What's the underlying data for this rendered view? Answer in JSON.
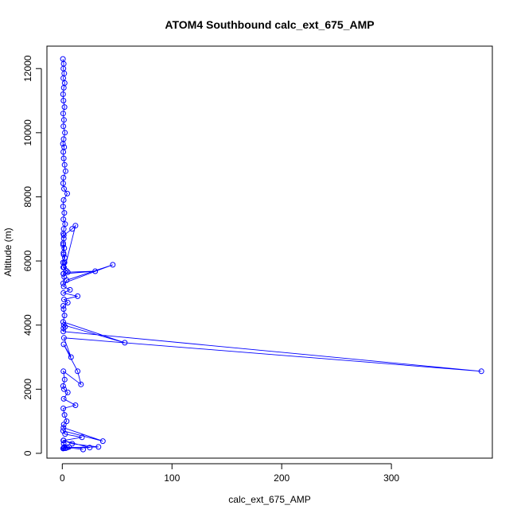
{
  "chart_data": {
    "type": "line",
    "title": "ATOM4 Southbound calc_ext_675_AMP",
    "xlabel": "calc_ext_675_AMP",
    "ylabel": "Altitude (m)",
    "xlim": [
      -14,
      392
    ],
    "ylim": [
      -150,
      12700
    ],
    "xticks": [
      0,
      100,
      200,
      300
    ],
    "yticks": [
      0,
      2000,
      4000,
      6000,
      8000,
      10000,
      12000
    ],
    "color": "#0000ff",
    "series": [
      {
        "x": [
          0.6,
          1.3,
          1.0,
          1.8,
          0.9,
          2.2,
          1.4,
          0.7,
          1.1,
          2.0,
          0.8,
          1.5,
          1.0,
          2.4,
          1.2,
          0.6,
          1.7,
          0.9,
          1.3,
          2.1,
          3.0,
          1.1,
          0.8,
          1.6,
          4.5,
          1.2,
          0.7,
          1.9,
          1.0,
          2.6,
          1.3,
          0.9,
          1.4,
          0.8,
          1.8,
          1.1,
          2.3,
          0.7,
          1.5,
          3.5,
          1.0,
          12.0,
          9.0,
          1.4,
          0.8,
          1.2,
          2.0,
          0.9,
          5.0,
          30.0,
          1.1,
          1.8,
          0.8,
          46.0,
          4.0,
          1.3,
          7.0,
          1.0,
          14.0,
          1.6,
          5.0,
          0.9,
          1.2,
          2.0,
          0.8,
          57.0,
          1.4,
          2.6,
          1.1,
          0.9,
          382.0,
          1.5,
          8.0,
          1.2,
          14.0,
          17.0,
          1.0,
          2.2,
          0.8,
          1.6,
          5.0,
          1.3,
          12.0,
          0.9,
          2.0,
          4.0,
          1.4,
          1.1,
          37.0,
          0.8,
          2.5,
          18.0,
          1.2,
          9.0,
          33.0,
          1.6,
          0.9,
          25.0,
          3.0,
          1.3,
          2.0,
          19.0,
          4.5,
          1.1,
          6.0,
          0.8
        ],
        "y": [
          12300,
          12150,
          12000,
          11850,
          11700,
          11550,
          11400,
          11200,
          11000,
          10800,
          10600,
          10400,
          10200,
          10000,
          9800,
          9650,
          9550,
          9400,
          9200,
          9000,
          8800,
          8600,
          8420,
          8250,
          8100,
          7900,
          7700,
          7500,
          7300,
          7150,
          7000,
          6850,
          6700,
          6550,
          6400,
          6250,
          6100,
          5950,
          5800,
          5700,
          5600,
          7100,
          7000,
          6800,
          6500,
          6200,
          5950,
          5800,
          5650,
          5680,
          5600,
          5500,
          5300,
          5880,
          5400,
          5200,
          5100,
          5000,
          4900,
          4800,
          4700,
          4600,
          4500,
          4300,
          4100,
          3450,
          4000,
          3950,
          3900,
          3800,
          2560,
          3600,
          3000,
          3400,
          2560,
          2150,
          2560,
          2300,
          2100,
          2000,
          1900,
          1700,
          1500,
          1400,
          1200,
          1000,
          900,
          800,
          380,
          700,
          600,
          500,
          400,
          300,
          200,
          180,
          400,
          180,
          160,
          300,
          200,
          120,
          180,
          160,
          200,
          150
        ]
      }
    ]
  }
}
